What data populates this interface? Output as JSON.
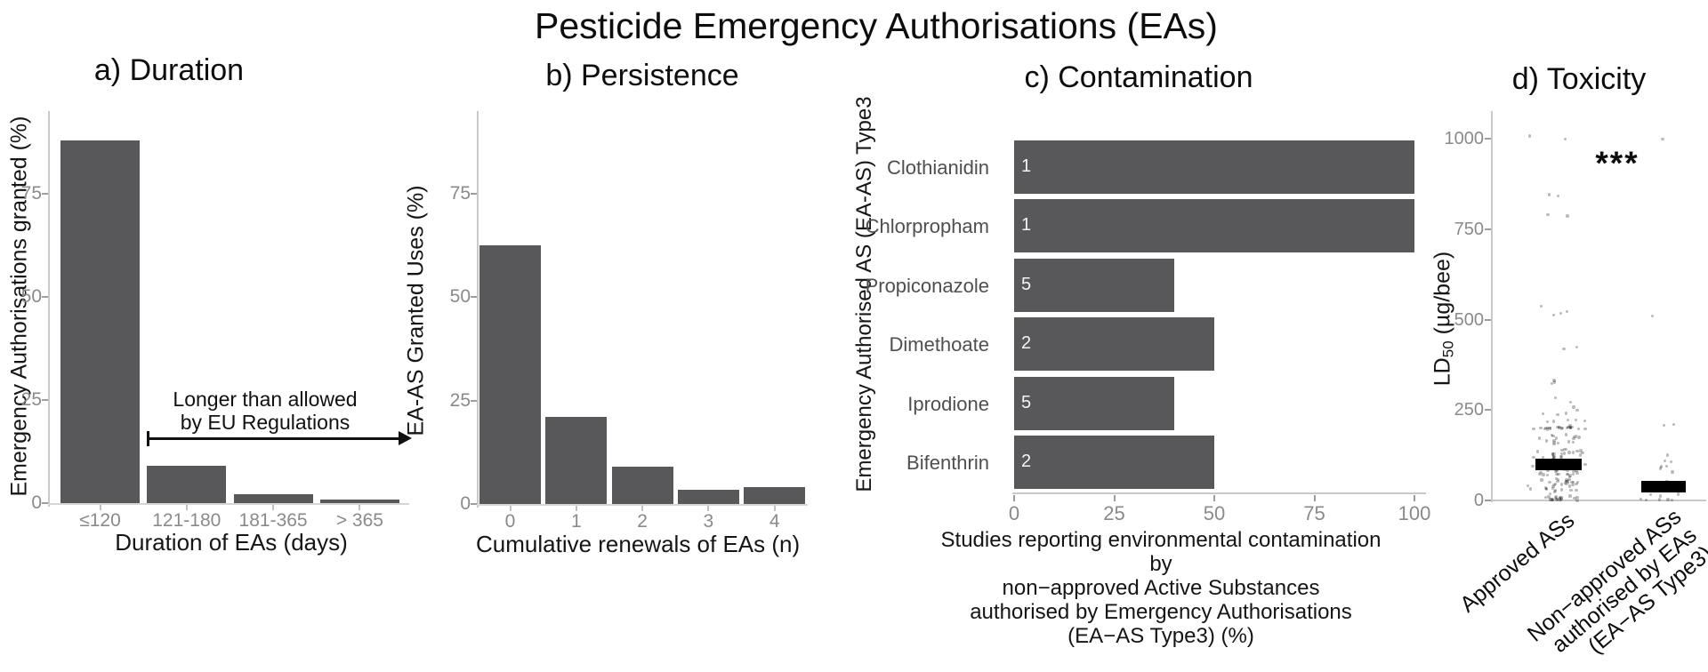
{
  "figure_title": "Pesticide Emergency Authorisations (EAs)",
  "panels": {
    "duration": {
      "title": "a) Duration",
      "ylabel": "Emergency Authorisations granted (%)",
      "xlabel": "Duration of EAs (days)",
      "annotation_line1": "Longer than allowed",
      "annotation_line2": "by EU Regulations"
    },
    "persistence": {
      "title": "b) Persistence",
      "ylabel": "EA-AS Granted Uses (%)",
      "xlabel": "Cumulative renewals of EAs (n)"
    },
    "contamination": {
      "title": "c) Contamination",
      "ylabel": "Emergency Authorised AS (EA-AS) Type3",
      "xlabel_lines": [
        "Studies reporting environmental contamination by",
        "non−approved Active Substances",
        "authorised by Emergency Authorisations",
        "(EA−AS Type3) (%)"
      ]
    },
    "toxicity": {
      "title": "d) Toxicity",
      "ylabel_prefix": "LD",
      "ylabel_sub": "50",
      "ylabel_suffix": " (µg/bee)",
      "significance": "***",
      "approved_label": "Approved ASs",
      "nonapproved_lines": [
        "Non−approved ASs",
        "authorised by EAs",
        "(EA−AS Type3)"
      ]
    }
  },
  "chart_data": [
    {
      "id": "duration",
      "type": "bar",
      "title": "a) Duration",
      "xlabel": "Duration of EAs (days)",
      "ylabel": "Emergency Authorisations granted (%)",
      "categories": [
        "≤120",
        "121-180",
        "181-365",
        "> 365"
      ],
      "values": [
        88,
        9,
        2.2,
        0.8
      ],
      "yticks": [
        0,
        25,
        50,
        75
      ],
      "ylim": [
        0,
        95
      ],
      "grid": false,
      "bar_color": "#58585a",
      "annotation": {
        "text": [
          "Longer than allowed",
          "by EU Regulations"
        ],
        "arrow_spans_categories": [
          "121-180",
          "> 365"
        ]
      }
    },
    {
      "id": "persistence",
      "type": "bar",
      "title": "b) Persistence",
      "xlabel": "Cumulative renewals of EAs (n)",
      "ylabel": "EA-AS Granted Uses (%)",
      "categories": [
        "0",
        "1",
        "2",
        "3",
        "4"
      ],
      "values": [
        62.5,
        21,
        9,
        3.5,
        4
      ],
      "yticks": [
        0,
        25,
        50,
        75
      ],
      "ylim": [
        0,
        95
      ],
      "grid": false,
      "bar_color": "#58585a"
    },
    {
      "id": "contamination",
      "type": "bar",
      "orientation": "horizontal",
      "title": "c) Contamination",
      "xlabel": "Studies reporting environmental contamination by non−approved Active Substances authorised by Emergency Authorisations (EA−AS Type3) (%)",
      "ylabel": "Emergency Authorised AS (EA-AS) Type3",
      "categories": [
        "Clothianidin",
        "Chlorpropham",
        "Propiconazole",
        "Dimethoate",
        "Iprodione",
        "Bifenthrin"
      ],
      "values": [
        100,
        100,
        40,
        50,
        40,
        50
      ],
      "bar_labels": [
        "1",
        "1",
        "5",
        "2",
        "5",
        "2"
      ],
      "xticks": [
        0,
        25,
        50,
        75,
        100
      ],
      "xlim": [
        0,
        100
      ],
      "grid": false,
      "bar_color": "#58585a"
    },
    {
      "id": "toxicity",
      "type": "scatter",
      "subtype": "jitter",
      "title": "d) Toxicity",
      "ylabel": "LD50 (µg/bee)",
      "yticks": [
        0,
        250,
        500,
        750,
        1000
      ],
      "ylim": [
        0,
        1075
      ],
      "significance": "***",
      "point_color": "rgba(25,25,25,0.30)",
      "median_color": "#000000",
      "groups": [
        {
          "label_lines": [
            "Approved ASs"
          ],
          "median": 100,
          "point_bands": [
            {
              "y": 1000,
              "spread": 8,
              "n": 2
            },
            {
              "y": 845,
              "spread": 6,
              "n": 2
            },
            {
              "y": 790,
              "spread": 6,
              "n": 2
            },
            {
              "y": 535,
              "spread": 25,
              "n": 3
            },
            {
              "y": 505,
              "spread": 8,
              "n": 1
            },
            {
              "y": 415,
              "spread": 10,
              "n": 2
            },
            {
              "y": 335,
              "spread": 12,
              "n": 3
            },
            {
              "y": 275,
              "spread": 10,
              "n": 2
            },
            {
              "y": 248,
              "spread": 12,
              "n": 5
            },
            {
              "y": 215,
              "spread": 8,
              "n": 6
            },
            {
              "y": 200,
              "spread": 3,
              "n": 22
            },
            {
              "y": 165,
              "spread": 18,
              "n": 16
            },
            {
              "y": 130,
              "spread": 12,
              "n": 18
            },
            {
              "y": 100,
              "spread": 20,
              "n": 48
            },
            {
              "y": 65,
              "spread": 15,
              "n": 22
            },
            {
              "y": 35,
              "spread": 18,
              "n": 26
            },
            {
              "y": 6,
              "spread": 6,
              "n": 20
            }
          ]
        },
        {
          "label_lines": [
            "Non−approved ASs",
            "authorised by EAs",
            "(EA−AS Type3)"
          ],
          "median": 37,
          "point_bands": [
            {
              "y": 1000,
              "spread": 4,
              "n": 1
            },
            {
              "y": 508,
              "spread": 4,
              "n": 1
            },
            {
              "y": 205,
              "spread": 6,
              "n": 2
            },
            {
              "y": 120,
              "spread": 15,
              "n": 3
            },
            {
              "y": 85,
              "spread": 15,
              "n": 4
            },
            {
              "y": 45,
              "spread": 12,
              "n": 5
            },
            {
              "y": 18,
              "spread": 12,
              "n": 6
            },
            {
              "y": 2,
              "spread": 2,
              "n": 5
            }
          ]
        }
      ]
    }
  ]
}
